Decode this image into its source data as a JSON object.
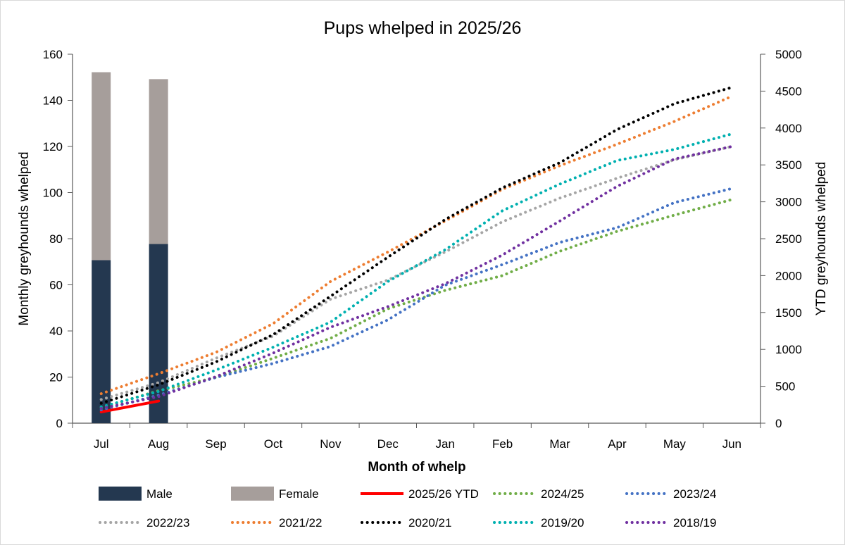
{
  "chart_data": {
    "type": "bar+line",
    "title": "Pups whelped in 2025/26",
    "xlabel": "Month of whelp",
    "ylabel_left": "Monthly greyhounds whelped",
    "ylabel_right": "YTD greyhounds whelped",
    "categories": [
      "Jul",
      "Aug",
      "Sep",
      "Oct",
      "Nov",
      "Dec",
      "Jan",
      "Feb",
      "Mar",
      "Apr",
      "May",
      "Jun"
    ],
    "ylim_left": [
      0,
      160
    ],
    "yticks_left": [
      0,
      20,
      40,
      60,
      80,
      100,
      120,
      140,
      160
    ],
    "ylim_right": [
      0,
      5000
    ],
    "yticks_right": [
      0,
      500,
      1000,
      1500,
      2000,
      2500,
      3000,
      3500,
      4000,
      4500,
      5000
    ],
    "grid": false,
    "bars": [
      {
        "name": "Male",
        "color": "#243850",
        "values": [
          70.7,
          77.7
        ]
      },
      {
        "name": "Female",
        "color": "#a69e9b",
        "values": [
          81.5,
          71.5
        ]
      }
    ],
    "lines": [
      {
        "name": "2025/26 YTD",
        "color": "#ff0000",
        "style": "solid",
        "values": [
          152,
          300
        ]
      },
      {
        "name": "2024/25",
        "color": "#70ad47",
        "style": "dotted",
        "values": [
          210,
          440,
          620,
          880,
          1150,
          1550,
          1800,
          2000,
          2330,
          2600,
          2820,
          3030
        ]
      },
      {
        "name": "2023/24",
        "color": "#4472c4",
        "style": "dotted",
        "values": [
          180,
          380,
          620,
          810,
          1040,
          1400,
          1870,
          2150,
          2450,
          2650,
          2990,
          3180
        ]
      },
      {
        "name": "2022/23",
        "color": "#a5a5a5",
        "style": "dotted",
        "values": [
          320,
          550,
          880,
          1180,
          1680,
          1940,
          2320,
          2730,
          3050,
          3320,
          3570,
          3750
        ]
      },
      {
        "name": "2021/22",
        "color": "#ed7d31",
        "style": "dotted",
        "values": [
          400,
          670,
          960,
          1350,
          1920,
          2320,
          2740,
          3170,
          3490,
          3780,
          4090,
          4430
        ]
      },
      {
        "name": "2020/21",
        "color": "#000000",
        "style": "dotted",
        "values": [
          270,
          520,
          830,
          1200,
          1720,
          2250,
          2760,
          3190,
          3530,
          3980,
          4330,
          4550
        ]
      },
      {
        "name": "2019/20",
        "color": "#00b0b0",
        "style": "dotted",
        "values": [
          220,
          430,
          720,
          1030,
          1370,
          1920,
          2350,
          2880,
          3240,
          3560,
          3710,
          3920
        ]
      },
      {
        "name": "2018/19",
        "color": "#7030a0",
        "style": "dotted",
        "values": [
          200,
          360,
          630,
          950,
          1300,
          1580,
          1890,
          2280,
          2740,
          3210,
          3580,
          3750
        ]
      }
    ],
    "legend": {
      "placement": "bottom",
      "row1": [
        "Male",
        "Female",
        "2025/26 YTD",
        "2024/25",
        "2023/24"
      ],
      "row2": [
        "2022/23",
        "2021/22",
        "2020/21",
        "2019/20",
        "2018/19"
      ]
    }
  }
}
